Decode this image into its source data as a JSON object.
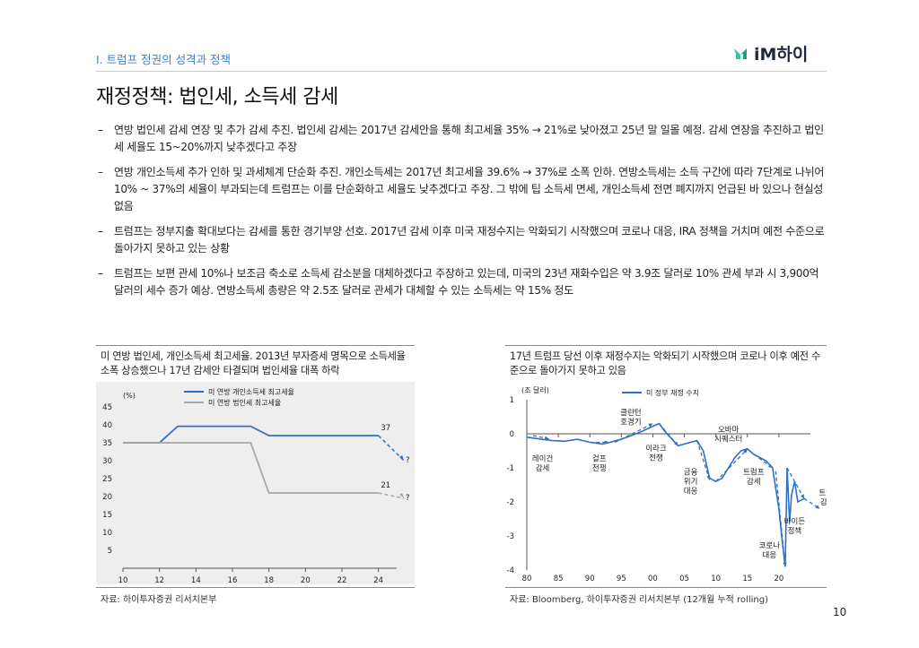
{
  "header": {
    "section": "I. 트럼프 정권의 성격과 정책",
    "logo_text": "iM하이",
    "page_title": "재정정책: 법인세, 소득세 감세"
  },
  "bullets": [
    {
      "dash": "–",
      "text": "연방 법인세 감세 연장 및 추가 감세 추진. 법인세 감세는 2017년 감세안을 통해 최고세율 35% → 21%로 낮아졌고 25년 말 일몰 예정. 감세 연장을 추진하고 법인세 세율도 15~20%까지 낮추겠다고 주장"
    },
    {
      "dash": "–",
      "text": "연방 개인소득세 추가 인하 및 과세체계 단순화 추진. 개인소득세는 2017년 최고세율 39.6% → 37%로 소폭 인하. 연방소득세는 소득 구간에 따라 7단계로 나뉘어 10% ~ 37%의 세율이 부과되는데 트럼프는 이를 단순화하고 세율도 낮추겠다고 주장. 그 밖에 팁 소득세 면세, 개인소득세 전면 폐지까지 언급된 바 있으나 현실성 없음"
    },
    {
      "dash": "–",
      "text": "트럼프는 정부지출 확대보다는 감세를 통한 경기부양 선호. 2017년 감세 이후 미국 재정수지는 악화되기 시작했으며 코로나 대응, IRA 정책을 거치며 예전 수준으로 돌아가지 못하고 있는 상황"
    },
    {
      "dash": "–",
      "text": "트럼프는 보편 관세 10%나 보조금 축소로 소득세 감소분을 대체하겠다고 주장하고 있는데, 미국의 23년 재화수입은 약 3.9조 달러로 10% 관세 부과 시 3,900억 달러의 세수 증가 예상. 연방소득세 총량은 약 2.5조 달러로 관세가 대체할 수 있는 소득세는 약 15% 정도"
    }
  ],
  "charts": {
    "left": {
      "title": "미 연방 법인세, 개인소득세 최고세율. 2013년 부자증세 명목으로 소득세율 소폭 상승했으나 17년 감세안 타결되며 법인세율 대폭 하락",
      "source": "자료: 하이투자증권 리서치본부"
    },
    "right": {
      "title": "17년 트럼프 당선 이후 재정수지는 악화되기 시작했으며 코로나 이후 예전 수준으로 돌아가지 못하고 있음",
      "source": "자료: Bloomberg, 하이투자증권 리서치본부 (12개월 누적 rolling)"
    }
  },
  "page_number": "10",
  "chart_data": [
    {
      "type": "line",
      "unit_label": "(%)",
      "ylim": [
        0,
        45
      ],
      "yticks": [
        "45",
        "40",
        "35",
        "30",
        "25",
        "20",
        "15",
        "10",
        "5"
      ],
      "xticks": [
        "10",
        "12",
        "14",
        "16",
        "18",
        "20",
        "22",
        "24"
      ],
      "xlim": [
        2010,
        2025
      ],
      "series": [
        {
          "name": "미 연방 개인소득세 최고세율",
          "color": "#2f6fc4",
          "x": [
            2010,
            2012,
            2013,
            2017,
            2018,
            2024
          ],
          "values": [
            35,
            35,
            39.6,
            39.6,
            37,
            37
          ],
          "projection": {
            "x": [
              2024,
              2025.4
            ],
            "values": [
              37,
              30
            ]
          }
        },
        {
          "name": "미 연방 법인세 최고세율",
          "color": "#a8a8a8",
          "x": [
            2010,
            2017,
            2018,
            2024
          ],
          "values": [
            35,
            35,
            21,
            21
          ],
          "projection": {
            "x": [
              2024,
              2025.4
            ],
            "values": [
              21,
              19.5
            ]
          }
        }
      ],
      "annotations": [
        {
          "text": "37",
          "x": 2024.4,
          "y": 38.5
        },
        {
          "text": "21",
          "x": 2024.4,
          "y": 22.5
        },
        {
          "text": "?",
          "x": 2025.6,
          "y": 29.5
        },
        {
          "text": "?",
          "x": 2025.6,
          "y": 19
        }
      ]
    },
    {
      "type": "line",
      "unit_label": "(조 달러)",
      "ylim": [
        -4,
        1
      ],
      "yticks": [
        "1",
        "0",
        "-1",
        "-2",
        "-3",
        "-4"
      ],
      "xticks": [
        "80",
        "85",
        "90",
        "95",
        "00",
        "05",
        "10",
        "15",
        "20"
      ],
      "xlim": [
        1980,
        2025
      ],
      "series": [
        {
          "name": "미 정부 재정 수지",
          "color": "#2f6fc4",
          "x": [
            1980,
            1982,
            1984,
            1986,
            1988,
            1990,
            1992,
            1993,
            1995,
            1998,
            2000,
            2001,
            2002,
            2004,
            2006,
            2007,
            2008,
            2009,
            2010,
            2011,
            2013,
            2014,
            2015,
            2016,
            2017,
            2018,
            2019,
            2020,
            2020.5,
            2021,
            2021.3,
            2021.7,
            2022,
            2022.5,
            2023,
            2024
          ],
          "values": [
            -0.1,
            -0.15,
            -0.2,
            -0.22,
            -0.16,
            -0.25,
            -0.3,
            -0.26,
            -0.16,
            0.05,
            0.22,
            0.3,
            0.05,
            -0.35,
            -0.25,
            -0.2,
            -0.5,
            -1.3,
            -1.4,
            -1.3,
            -0.7,
            -0.5,
            -0.44,
            -0.6,
            -0.7,
            -0.8,
            -1.0,
            -2.2,
            -3.1,
            -3.9,
            -1.0,
            -2.6,
            -1.8,
            -1.4,
            -2.0,
            -1.9
          ]
        }
      ],
      "annotations": [
        {
          "text": "레이건 감세",
          "x": 1982.5,
          "y": -0.8,
          "arrow_from": [
            1981,
            -0.05
          ],
          "arrow_to": [
            1983.5,
            -0.15
          ]
        },
        {
          "text": "걸프 전쟁",
          "x": 1991.5,
          "y": -0.8,
          "arrow_from": [
            1990,
            -0.25
          ],
          "arrow_to": [
            1993,
            -0.25
          ]
        },
        {
          "text": "클린턴 호경기",
          "x": 1996.5,
          "y": 0.55,
          "arrow_from": [
            1994,
            -0.25
          ],
          "arrow_to": [
            2000,
            0.3
          ]
        },
        {
          "text": "이라크 전쟁",
          "x": 2000.5,
          "y": -0.5,
          "arrow_from": [
            2001,
            0.3
          ],
          "arrow_to": [
            2004,
            -0.35
          ]
        },
        {
          "text": "금융 위기 대응",
          "x": 2006,
          "y": -1.2,
          "arrow_from": [
            2007,
            -0.2
          ],
          "arrow_to": [
            2009,
            -1.35
          ]
        },
        {
          "text": "오바마 시퀘스터",
          "x": 2012,
          "y": 0.05,
          "arrow_from": [
            2010,
            -1.4
          ],
          "arrow_to": [
            2015,
            -0.45
          ]
        },
        {
          "text": "트럼프 감세",
          "x": 2016,
          "y": -1.2,
          "arrow_from": [
            2016,
            -0.6
          ],
          "arrow_to": [
            2019,
            -1.0
          ]
        },
        {
          "text": "코로나 대응",
          "x": 2018.5,
          "y": -3.35,
          "arrow_from": [
            2019.5,
            -1.1
          ],
          "arrow_to": [
            2021,
            -3.9
          ]
        },
        {
          "text": "바이든 정책",
          "x": 2022.5,
          "y": -2.65,
          "arrow_from": [
            2021.3,
            -1.0
          ],
          "arrow_to": [
            2024,
            -1.9
          ]
        },
        {
          "text": "트럼프 감세?",
          "x": 2028,
          "y": -1.8,
          "arrow_from": [
            2024,
            -1.9
          ],
          "arrow_to": [
            2026.5,
            -2.2
          ]
        }
      ]
    }
  ]
}
